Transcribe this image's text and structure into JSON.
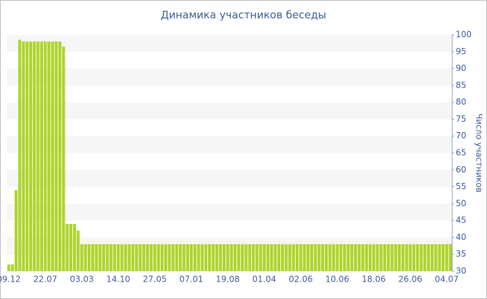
{
  "chart_data": {
    "type": "bar",
    "title": "Динамика участников беседы",
    "y_axis_label": "Число участников",
    "categories": [
      "09.12",
      null,
      null,
      null,
      null,
      null,
      null,
      null,
      null,
      null,
      "22.07",
      null,
      null,
      null,
      null,
      null,
      null,
      null,
      null,
      null,
      "03.03",
      null,
      null,
      null,
      null,
      null,
      null,
      null,
      null,
      null,
      "14.10",
      null,
      null,
      null,
      null,
      null,
      null,
      null,
      null,
      null,
      "27.05",
      null,
      null,
      null,
      null,
      null,
      null,
      null,
      null,
      null,
      "07.01",
      null,
      null,
      null,
      null,
      null,
      null,
      null,
      null,
      null,
      "19.08",
      null,
      null,
      null,
      null,
      null,
      null,
      null,
      null,
      null,
      "01.04",
      null,
      null,
      null,
      null,
      null,
      null,
      null,
      null,
      null,
      "02.06",
      null,
      null,
      null,
      null,
      null,
      null,
      null,
      null,
      null,
      "10.06",
      null,
      null,
      null,
      null,
      null,
      null,
      null,
      null,
      null,
      "18.06",
      null,
      null,
      null,
      null,
      null,
      null,
      null,
      null,
      null,
      "26.06",
      null,
      null,
      null,
      null,
      null,
      null,
      null,
      null,
      null,
      "04.07",
      null
    ],
    "values": [
      32,
      32,
      54,
      98.5,
      98,
      98,
      98,
      98,
      98,
      98,
      98,
      98,
      98,
      98,
      98,
      96.5,
      44,
      44,
      44,
      42,
      38,
      38,
      38,
      38,
      38,
      38,
      38,
      38,
      38,
      38,
      38,
      38,
      38,
      38,
      38,
      38,
      38,
      38,
      38,
      38,
      38,
      38,
      38,
      38,
      38,
      38,
      38,
      38,
      38,
      38,
      38,
      38,
      38,
      38,
      38,
      38,
      38,
      38,
      38,
      38,
      38,
      38,
      38,
      38,
      38,
      38,
      38,
      38,
      38,
      38,
      38,
      38,
      38,
      38,
      38,
      38,
      38,
      38,
      38,
      38,
      38,
      38,
      38,
      38,
      38,
      38,
      38,
      38,
      38,
      38,
      38,
      38,
      38,
      38,
      38,
      38,
      38,
      38,
      38,
      38,
      38,
      38,
      38,
      38,
      38,
      38,
      38,
      38,
      38,
      38,
      38,
      38,
      38,
      38,
      38,
      38,
      38,
      38,
      38,
      38,
      38,
      38
    ],
    "color": "#aed42a",
    "ylim": [
      30,
      100
    ],
    "yticks": [
      30,
      35,
      40,
      45,
      50,
      55,
      60,
      65,
      70,
      75,
      80,
      85,
      90,
      95,
      100
    ],
    "y_axis_side": "right",
    "grid_bands": true
  }
}
